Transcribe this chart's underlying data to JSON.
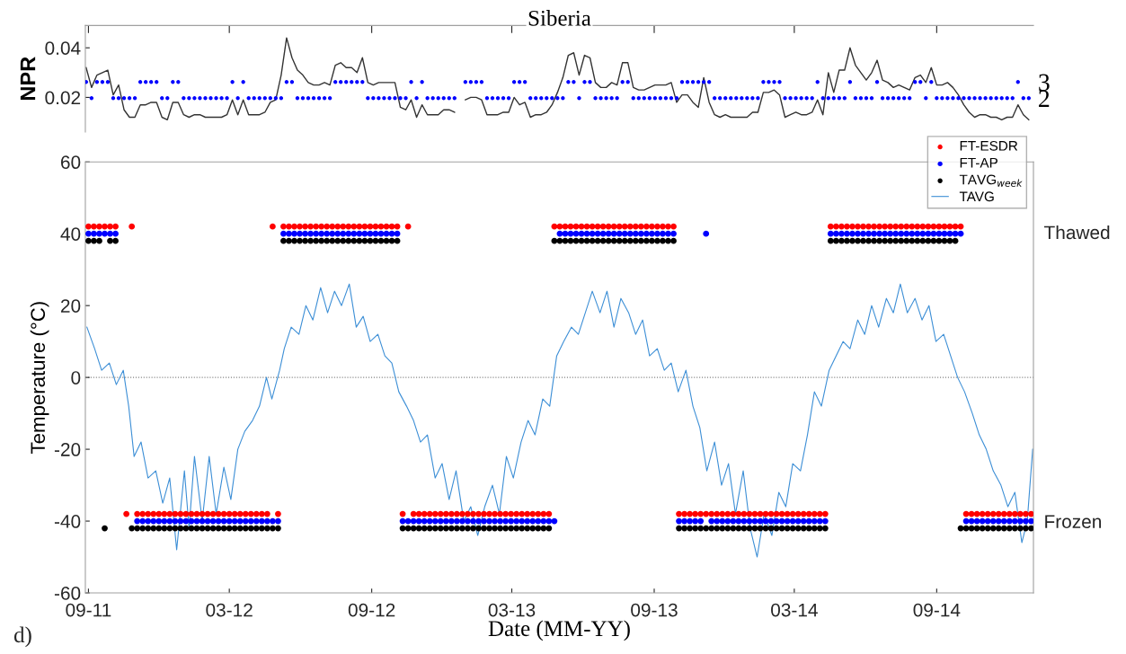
{
  "chart_data": [
    {
      "type": "line",
      "title": "Siberia",
      "ylabel": "NPR",
      "x": [
        "2011-08-29",
        "2011-09-05",
        "2011-09-12",
        "2011-09-19",
        "2011-09-26",
        "2011-10-03",
        "2011-10-10",
        "2011-10-17",
        "2011-10-24",
        "2011-10-31",
        "2011-11-07",
        "2011-11-14",
        "2011-11-21",
        "2011-11-28",
        "2011-12-05",
        "2011-12-12",
        "2011-12-19",
        "2011-12-26",
        "2012-01-02",
        "2012-01-09",
        "2012-01-16",
        "2012-01-23",
        "2012-01-30",
        "2012-02-06",
        "2012-02-13",
        "2012-02-20",
        "2012-02-27",
        "2012-03-05",
        "2012-03-12",
        "2012-03-19",
        "2012-03-26",
        "2012-04-02",
        "2012-04-09",
        "2012-04-16",
        "2012-04-23",
        "2012-04-30",
        "2012-05-07",
        "2012-05-14",
        "2012-05-21",
        "2012-05-28",
        "2012-06-04",
        "2012-06-11",
        "2012-06-18",
        "2012-06-25",
        "2012-07-02",
        "2012-07-09",
        "2012-07-16",
        "2012-07-23",
        "2012-07-30",
        "2012-08-06",
        "2012-08-13",
        "2012-08-20",
        "2012-08-27",
        "2012-09-03",
        "2012-09-10",
        "2012-09-17",
        "2012-09-24",
        "2012-10-01",
        "2012-10-08",
        "2012-10-15",
        "2012-10-22",
        "2012-10-29",
        "2012-11-05",
        "2012-11-12",
        "2012-11-19",
        "2012-11-26",
        "2012-12-03",
        "2012-12-10",
        "2012-12-17",
        "2012-12-24",
        "2012-12-31",
        "2013-01-07",
        "2013-01-14",
        "2013-01-21",
        "2013-01-28",
        "2013-02-04",
        "2013-02-11",
        "2013-02-18",
        "2013-02-25",
        "2013-03-04",
        "2013-03-11",
        "2013-03-18",
        "2013-03-25",
        "2013-04-01",
        "2013-04-08",
        "2013-04-15",
        "2013-04-22",
        "2013-04-29",
        "2013-05-06",
        "2013-05-13",
        "2013-05-20",
        "2013-05-27",
        "2013-06-03",
        "2013-06-10",
        "2013-06-17",
        "2013-06-24",
        "2013-07-01",
        "2013-07-08",
        "2013-07-15",
        "2013-07-22",
        "2013-07-29",
        "2013-08-05",
        "2013-08-12",
        "2013-08-19",
        "2013-08-26",
        "2013-09-02",
        "2013-09-09",
        "2013-09-16",
        "2013-09-23",
        "2013-09-30",
        "2013-10-07",
        "2013-10-14",
        "2013-10-21",
        "2013-10-28",
        "2013-11-04",
        "2013-11-11",
        "2013-11-18",
        "2013-11-25",
        "2013-12-02",
        "2013-12-09",
        "2013-12-16",
        "2013-12-23",
        "2013-12-30",
        "2014-01-06",
        "2014-01-13",
        "2014-01-20",
        "2014-01-27",
        "2014-02-03",
        "2014-02-10",
        "2014-02-17",
        "2014-02-24",
        "2014-03-03",
        "2014-03-10",
        "2014-03-17",
        "2014-03-24",
        "2014-03-31",
        "2014-04-07",
        "2014-04-14",
        "2014-04-21",
        "2014-04-28",
        "2014-05-05",
        "2014-05-12",
        "2014-05-19",
        "2014-05-26",
        "2014-06-02",
        "2014-06-09",
        "2014-06-16",
        "2014-06-23",
        "2014-06-30",
        "2014-07-07",
        "2014-07-14",
        "2014-07-21",
        "2014-07-28",
        "2014-08-04",
        "2014-08-11",
        "2014-08-18",
        "2014-08-25",
        "2014-09-01",
        "2014-09-08",
        "2014-09-15",
        "2014-09-22",
        "2014-09-29",
        "2014-10-06",
        "2014-10-13",
        "2014-10-20",
        "2014-10-27",
        "2014-11-03",
        "2014-11-10",
        "2014-11-17",
        "2014-11-24",
        "2014-12-01",
        "2014-12-08",
        "2014-12-15",
        "2014-12-22",
        "2014-12-29"
      ],
      "xlim": [
        "2011-08-28",
        "2015-01-04"
      ],
      "xticks": [
        {
          "value": "2011-09-01",
          "label": null
        },
        {
          "value": "2012-03-01",
          "label": null
        },
        {
          "value": "2012-09-01",
          "label": null
        },
        {
          "value": "2013-03-01",
          "label": null
        },
        {
          "value": "2013-09-01",
          "label": null
        },
        {
          "value": "2014-03-01",
          "label": null
        },
        {
          "value": "2014-09-01",
          "label": null
        }
      ],
      "ylim": [
        0.006,
        0.049
      ],
      "yticks": [
        0.02,
        0.04
      ],
      "y2lim": [
        -0.1,
        6.5
      ],
      "y2ticks": [
        2,
        3
      ],
      "tick_labels": "y",
      "series": [
        {
          "color": "#333333",
          "values": [
            0.032,
            0.024,
            0.029,
            0.03,
            0.031,
            0.021,
            0.025,
            0.015,
            0.012,
            0.012,
            0.017,
            0.017,
            0.018,
            0.018,
            0.012,
            0.011,
            0.018,
            0.018,
            0.013,
            0.012,
            0.013,
            0.013,
            0.012,
            0.012,
            0.012,
            0.012,
            0.013,
            0.019,
            0.013,
            0.019,
            0.013,
            0.013,
            0.013,
            0.014,
            0.018,
            0.019,
            0.029,
            0.044,
            0.036,
            0.031,
            0.029,
            0.026,
            0.025,
            0.025,
            0.026,
            0.025,
            0.033,
            0.034,
            0.032,
            0.032,
            0.03,
            0.036,
            0.026,
            0.025,
            0.026,
            0.026,
            0.026,
            0.026,
            0.016,
            0.015,
            0.019,
            0.012,
            0.017,
            0.013,
            0.013,
            0.013,
            0.015,
            0.015,
            0.014,
            null,
            0.019,
            0.02,
            0.02,
            0.019,
            0.013,
            0.013,
            0.013,
            0.014,
            0.014,
            0.02,
            0.017,
            0.018,
            0.012,
            0.013,
            0.013,
            0.014,
            0.017,
            0.022,
            0.028,
            0.037,
            0.038,
            0.029,
            0.037,
            0.036,
            0.026,
            0.024,
            0.024,
            0.026,
            0.025,
            0.034,
            0.034,
            0.024,
            0.023,
            0.023,
            0.024,
            0.025,
            0.025,
            0.025,
            0.026,
            0.018,
            0.021,
            0.021,
            0.018,
            0.016,
            0.028,
            0.018,
            0.013,
            0.012,
            0.013,
            0.012,
            0.012,
            0.012,
            0.012,
            0.014,
            0.014,
            0.022,
            0.022,
            0.023,
            0.021,
            0.012,
            0.013,
            0.014,
            0.013,
            0.013,
            0.014,
            0.019,
            0.013,
            0.03,
            0.022,
            0.031,
            0.031,
            0.04,
            0.033,
            0.03,
            0.027,
            0.03,
            0.035,
            0.027,
            0.026,
            0.024,
            0.025,
            0.024,
            0.023,
            0.028,
            0.029,
            0.026,
            0.032,
            0.025,
            0.025,
            0.026,
            0.024,
            0.021,
            0.017,
            0.014,
            0.012,
            0.013,
            0.013,
            0.012,
            0.012,
            0.011,
            0.012,
            0.012,
            0.017,
            0.013,
            0.011
          ]
        },
        {
          "type": "scatter",
          "axis": "y2",
          "marker": "circle",
          "color": "#0000ff",
          "values": [
            3,
            2,
            3,
            3,
            3,
            2,
            2,
            2,
            2,
            2,
            3,
            3,
            3,
            3,
            2,
            2,
            3,
            3,
            2,
            2,
            2,
            2,
            2,
            2,
            2,
            2,
            2,
            3,
            2,
            3,
            2,
            2,
            2,
            2,
            2,
            2,
            2,
            3,
            3,
            2,
            2,
            2,
            2,
            2,
            2,
            2,
            3,
            3,
            3,
            3,
            3,
            3,
            2,
            2,
            2,
            2,
            2,
            2,
            2,
            2,
            3,
            2,
            3,
            2,
            2,
            2,
            2,
            2,
            2,
            null,
            3,
            3,
            3,
            3,
            2,
            2,
            2,
            2,
            2,
            3,
            3,
            3,
            2,
            2,
            2,
            2,
            2,
            2,
            2,
            3,
            3,
            2,
            3,
            3,
            2,
            2,
            2,
            2,
            2,
            3,
            3,
            2,
            2,
            2,
            2,
            2,
            2,
            2,
            2,
            2,
            3,
            3,
            3,
            3,
            3,
            3,
            2,
            2,
            2,
            2,
            2,
            2,
            2,
            2,
            2,
            3,
            3,
            3,
            3,
            2,
            2,
            2,
            2,
            2,
            2,
            3,
            2,
            2,
            2,
            2,
            2,
            3,
            2,
            2,
            2,
            2,
            3,
            2,
            2,
            2,
            2,
            2,
            2,
            3,
            3,
            2,
            3,
            2,
            2,
            2,
            2,
            2,
            2,
            2,
            2,
            2,
            2,
            2,
            2,
            2,
            2,
            2,
            3,
            2,
            2
          ]
        }
      ]
    },
    {
      "type": "scatter",
      "xlabel": "Date (MM-YY)",
      "ylabel": "Temperature (°C)",
      "x": [
        "2011-09-01",
        "2011-09-08",
        "2011-09-15",
        "2011-09-22",
        "2011-09-29",
        "2011-10-06",
        "2011-10-13",
        "2011-10-20",
        "2011-10-27",
        "2011-11-03",
        "2011-11-10",
        "2011-11-17",
        "2011-11-24",
        "2011-12-01",
        "2011-12-08",
        "2011-12-15",
        "2011-12-22",
        "2011-12-29",
        "2012-01-05",
        "2012-01-12",
        "2012-01-19",
        "2012-01-26",
        "2012-02-02",
        "2012-02-09",
        "2012-02-16",
        "2012-02-23",
        "2012-03-01",
        "2012-03-08",
        "2012-03-15",
        "2012-03-22",
        "2012-03-29",
        "2012-04-05",
        "2012-04-12",
        "2012-04-19",
        "2012-04-26",
        "2012-05-03",
        "2012-05-10",
        "2012-05-17",
        "2012-05-24",
        "2012-05-31",
        "2012-06-07",
        "2012-06-14",
        "2012-06-21",
        "2012-06-28",
        "2012-07-05",
        "2012-07-12",
        "2012-07-19",
        "2012-07-26",
        "2012-08-02",
        "2012-08-09",
        "2012-08-16",
        "2012-08-23",
        "2012-08-30",
        "2012-09-06",
        "2012-09-13",
        "2012-09-20",
        "2012-09-27",
        "2012-10-04",
        "2012-10-11",
        "2012-10-18",
        "2012-10-25",
        "2012-11-01",
        "2012-11-08",
        "2012-11-15",
        "2012-11-22",
        "2012-11-29",
        "2012-12-06",
        "2012-12-13",
        "2012-12-20",
        "2012-12-27",
        "2013-01-03",
        "2013-01-10",
        "2013-01-17",
        "2013-01-24",
        "2013-01-31",
        "2013-02-07",
        "2013-02-14",
        "2013-02-21",
        "2013-02-28",
        "2013-03-07",
        "2013-03-14",
        "2013-03-21",
        "2013-03-28",
        "2013-04-04",
        "2013-04-11",
        "2013-04-18",
        "2013-04-25",
        "2013-05-02",
        "2013-05-09",
        "2013-05-16",
        "2013-05-23",
        "2013-05-30",
        "2013-06-06",
        "2013-06-13",
        "2013-06-20",
        "2013-06-27",
        "2013-07-04",
        "2013-07-11",
        "2013-07-18",
        "2013-07-25",
        "2013-08-01",
        "2013-08-08",
        "2013-08-15",
        "2013-08-22",
        "2013-08-29",
        "2013-09-05",
        "2013-09-12",
        "2013-09-19",
        "2013-09-26",
        "2013-10-03",
        "2013-10-10",
        "2013-10-17",
        "2013-10-24",
        "2013-10-31",
        "2013-11-07",
        "2013-11-14",
        "2013-11-21",
        "2013-11-28",
        "2013-12-05",
        "2013-12-12",
        "2013-12-19",
        "2013-12-26",
        "2014-01-02",
        "2014-01-09",
        "2014-01-16",
        "2014-01-23",
        "2014-01-30",
        "2014-02-06",
        "2014-02-13",
        "2014-02-20",
        "2014-02-27",
        "2014-03-06",
        "2014-03-13",
        "2014-03-20",
        "2014-03-27",
        "2014-04-03",
        "2014-04-10",
        "2014-04-17",
        "2014-04-24",
        "2014-05-01",
        "2014-05-08",
        "2014-05-15",
        "2014-05-22",
        "2014-05-29",
        "2014-06-05",
        "2014-06-12",
        "2014-06-19",
        "2014-06-26",
        "2014-07-03",
        "2014-07-10",
        "2014-07-17",
        "2014-07-24",
        "2014-07-31",
        "2014-08-07",
        "2014-08-14",
        "2014-08-21",
        "2014-08-28",
        "2014-09-04",
        "2014-09-11",
        "2014-09-18",
        "2014-09-25",
        "2014-10-02",
        "2014-10-09",
        "2014-10-16",
        "2014-10-23",
        "2014-10-30",
        "2014-11-06",
        "2014-11-13",
        "2014-11-20",
        "2014-11-27",
        "2014-12-04",
        "2014-12-11",
        "2014-12-18",
        "2014-12-25",
        "2015-01-01"
      ],
      "xlim": [
        "2011-08-28",
        "2015-01-04"
      ],
      "xticks": [
        {
          "value": "2011-09-01",
          "label": "09-11"
        },
        {
          "value": "2012-03-01",
          "label": "03-12"
        },
        {
          "value": "2012-09-01",
          "label": "09-12"
        },
        {
          "value": "2013-03-01",
          "label": "03-13"
        },
        {
          "value": "2013-09-01",
          "label": "09-13"
        },
        {
          "value": "2014-03-01",
          "label": "03-14"
        },
        {
          "value": "2014-09-01",
          "label": "09-14"
        }
      ],
      "ylim": [
        -60,
        60
      ],
      "yticks": [
        -60,
        -40,
        -20,
        0,
        20,
        40,
        60
      ],
      "ref_lines": [
        {
          "axis": "y",
          "value": 0,
          "color": "#808080",
          "line_style": "dotted"
        }
      ],
      "legend": "top right",
      "annotations": [
        "Thawed",
        "Frozen",
        "d)"
      ],
      "series": [
        {
          "name": "FT-ESDR",
          "marker": "circle",
          "color": "#ff0000",
          "values": [
            42,
            42,
            42,
            42,
            42,
            42,
            null,
            -38,
            42,
            -38,
            -38,
            -38,
            -38,
            -38,
            -38,
            -38,
            -38,
            -38,
            -38,
            -38,
            -38,
            -38,
            -38,
            -38,
            -38,
            -38,
            -38,
            -38,
            -38,
            -38,
            -38,
            -38,
            -38,
            -38,
            42,
            -38,
            42,
            42,
            42,
            42,
            42,
            42,
            42,
            42,
            42,
            42,
            42,
            42,
            42,
            42,
            42,
            42,
            42,
            42,
            42,
            42,
            42,
            42,
            -38,
            42,
            -38,
            -38,
            -38,
            -38,
            -38,
            -38,
            -38,
            -38,
            -38,
            -38,
            -38,
            -38,
            -38,
            -38,
            -38,
            -38,
            -38,
            -38,
            -38,
            -38,
            -38,
            -38,
            -38,
            -38,
            -38,
            -38,
            42,
            42,
            42,
            42,
            42,
            42,
            42,
            42,
            42,
            42,
            42,
            42,
            42,
            42,
            42,
            42,
            42,
            42,
            42,
            42,
            42,
            42,
            42,
            -38,
            -38,
            -38,
            -38,
            -38,
            -38,
            -38,
            -38,
            -38,
            -38,
            -38,
            -38,
            -38,
            -38,
            -38,
            -38,
            -38,
            -38,
            -38,
            -38,
            -38,
            -38,
            -38,
            -38,
            -38,
            -38,
            -38,
            -38,
            42,
            42,
            42,
            42,
            42,
            42,
            42,
            42,
            42,
            42,
            42,
            42,
            42,
            42,
            42,
            42,
            42,
            42,
            42,
            42,
            42,
            42,
            42,
            42,
            42,
            -38,
            -38,
            -38,
            -38,
            -38,
            -38,
            -38,
            -38,
            -38,
            -38,
            -38,
            -38,
            -38
          ]
        },
        {
          "name": "FT-AP",
          "marker": "circle",
          "color": "#0000ff",
          "values": [
            40,
            40,
            40,
            40,
            40,
            40,
            null,
            null,
            null,
            -40,
            -40,
            -40,
            -40,
            -40,
            -40,
            -40,
            -40,
            -40,
            -40,
            -40,
            -40,
            -40,
            -40,
            -40,
            -40,
            -40,
            -40,
            -40,
            -40,
            -40,
            -40,
            -40,
            -40,
            -40,
            -40,
            -40,
            40,
            40,
            40,
            40,
            40,
            40,
            40,
            40,
            40,
            40,
            40,
            40,
            40,
            40,
            40,
            40,
            40,
            40,
            40,
            40,
            40,
            40,
            -40,
            -40,
            -40,
            -40,
            -40,
            -40,
            -40,
            -40,
            -40,
            -40,
            -40,
            -40,
            -40,
            -40,
            -40,
            -40,
            -40,
            -40,
            -40,
            -40,
            -40,
            -40,
            -40,
            -40,
            -40,
            -40,
            -40,
            -40,
            -40,
            40,
            40,
            40,
            40,
            40,
            40,
            40,
            40,
            40,
            40,
            40,
            40,
            40,
            40,
            40,
            40,
            40,
            40,
            40,
            40,
            40,
            40,
            -40,
            -40,
            -40,
            -40,
            -40,
            40,
            -40,
            -40,
            -40,
            -40,
            -40,
            -40,
            -40,
            -40,
            -40,
            -40,
            -40,
            -40,
            -40,
            -40,
            -40,
            -40,
            -40,
            -40,
            -40,
            -40,
            -40,
            -40,
            40,
            40,
            40,
            40,
            40,
            40,
            40,
            40,
            40,
            40,
            40,
            40,
            40,
            40,
            40,
            40,
            40,
            40,
            40,
            40,
            40,
            40,
            40,
            40,
            40,
            -40,
            -40,
            -40,
            -40,
            -40,
            -40,
            -40,
            -40,
            -40,
            -40,
            -40,
            -40,
            -40
          ]
        },
        {
          "name": "TAVG$_{week}$",
          "marker": "circle",
          "color": "#000000",
          "values": [
            38,
            38,
            38,
            -42,
            38,
            38,
            null,
            null,
            -42,
            -42,
            -42,
            -42,
            -42,
            -42,
            -42,
            -42,
            -42,
            -42,
            -42,
            -42,
            -42,
            -42,
            -42,
            -42,
            -42,
            -42,
            -42,
            -42,
            -42,
            -42,
            -42,
            -42,
            -42,
            -42,
            -42,
            -42,
            38,
            38,
            38,
            38,
            38,
            38,
            38,
            38,
            38,
            38,
            38,
            38,
            38,
            38,
            38,
            38,
            38,
            38,
            38,
            38,
            38,
            38,
            -42,
            -42,
            -42,
            -42,
            -42,
            -42,
            -42,
            -42,
            -42,
            -42,
            -42,
            -42,
            -42,
            -42,
            -42,
            -42,
            -42,
            -42,
            -42,
            -42,
            -42,
            -42,
            -42,
            -42,
            -42,
            -42,
            -42,
            -42,
            38,
            38,
            38,
            38,
            38,
            38,
            38,
            38,
            38,
            38,
            38,
            38,
            38,
            38,
            38,
            38,
            38,
            38,
            38,
            38,
            38,
            38,
            38,
            -42,
            -42,
            -42,
            -42,
            -42,
            -42,
            -42,
            -42,
            -42,
            -42,
            -42,
            -42,
            -42,
            -42,
            -42,
            -42,
            -42,
            -42,
            -42,
            -42,
            -42,
            -42,
            -42,
            -42,
            -42,
            -42,
            -42,
            -42,
            38,
            38,
            38,
            38,
            38,
            38,
            38,
            38,
            38,
            38,
            38,
            38,
            38,
            38,
            38,
            38,
            38,
            38,
            38,
            38,
            38,
            38,
            38,
            38,
            -42,
            -42,
            -42,
            -42,
            -42,
            -42,
            -42,
            -42,
            -42,
            -42,
            -42,
            -42,
            -42,
            -42
          ]
        },
        {
          "type": "line",
          "name": "TAVG",
          "color": "#3d8fd6",
          "x": [
            "2011-08-30",
            "2011-09-09",
            "2011-09-18",
            "2011-09-28",
            "2011-10-07",
            "2011-10-16",
            "2011-10-23",
            "2011-10-30",
            "2011-11-08",
            "2011-11-17",
            "2011-11-27",
            "2011-12-06",
            "2011-12-15",
            "2011-12-24",
            "2012-01-03",
            "2012-01-09",
            "2012-01-16",
            "2012-01-26",
            "2012-02-04",
            "2012-02-13",
            "2012-02-23",
            "2012-03-03",
            "2012-03-12",
            "2012-03-21",
            "2012-03-31",
            "2012-04-09",
            "2012-04-18",
            "2012-04-25",
            "2012-05-05",
            "2012-05-11",
            "2012-05-20",
            "2012-05-30",
            "2012-06-08",
            "2012-06-17",
            "2012-06-27",
            "2012-07-06",
            "2012-07-15",
            "2012-07-24",
            "2012-08-03",
            "2012-08-12",
            "2012-08-21",
            "2012-08-30",
            "2012-09-09",
            "2012-09-18",
            "2012-09-27",
            "2012-10-06",
            "2012-10-16",
            "2012-10-25",
            "2012-11-03",
            "2012-11-12",
            "2012-11-22",
            "2012-12-01",
            "2012-12-10",
            "2012-12-19",
            "2012-12-29",
            "2013-01-07",
            "2013-01-16",
            "2013-01-25",
            "2013-02-04",
            "2013-02-13",
            "2013-02-22",
            "2013-03-03",
            "2013-03-13",
            "2013-03-22",
            "2013-03-31",
            "2013-04-10",
            "2013-04-19",
            "2013-04-28",
            "2013-05-07",
            "2013-05-17",
            "2013-05-26",
            "2013-06-04",
            "2013-06-13",
            "2013-06-23",
            "2013-07-02",
            "2013-07-11",
            "2013-07-20",
            "2013-07-30",
            "2013-08-08",
            "2013-08-17",
            "2013-08-26",
            "2013-09-05",
            "2013-09-14",
            "2013-09-23",
            "2013-10-02",
            "2013-10-12",
            "2013-10-21",
            "2013-10-30",
            "2013-11-08",
            "2013-11-18",
            "2013-11-27",
            "2013-12-06",
            "2013-12-15",
            "2013-12-25",
            "2014-01-03",
            "2014-01-12",
            "2014-01-21",
            "2014-01-31",
            "2014-02-09",
            "2014-02-18",
            "2014-02-27",
            "2014-03-09",
            "2014-03-18",
            "2014-03-27",
            "2014-04-05",
            "2014-04-15",
            "2014-04-24",
            "2014-05-03",
            "2014-05-12",
            "2014-05-22",
            "2014-05-31",
            "2014-06-09",
            "2014-06-18",
            "2014-06-28",
            "2014-07-07",
            "2014-07-16",
            "2014-07-25",
            "2014-08-04",
            "2014-08-13",
            "2014-08-22",
            "2014-08-31",
            "2014-09-10",
            "2014-09-19",
            "2014-09-28",
            "2014-10-07",
            "2014-10-17",
            "2014-10-26",
            "2014-11-04",
            "2014-11-13",
            "2014-11-23",
            "2014-12-02",
            "2014-12-11",
            "2014-12-20",
            "2014-12-27",
            "2015-01-03"
          ],
          "values": [
            14,
            8,
            2,
            4,
            -2,
            2,
            -8,
            -22,
            -18,
            -28,
            -26,
            -35,
            -28,
            -48,
            -26,
            -42,
            -22,
            -40,
            -22,
            -38,
            -25,
            -34,
            -20,
            -15,
            -12,
            -8,
            0,
            -6,
            2,
            8,
            14,
            12,
            20,
            16,
            25,
            18,
            24,
            20,
            26,
            14,
            17,
            10,
            12,
            6,
            4,
            -4,
            -8,
            -12,
            -18,
            -16,
            -28,
            -24,
            -34,
            -26,
            -40,
            -36,
            -44,
            -36,
            -30,
            -38,
            -22,
            -28,
            -18,
            -12,
            -16,
            -6,
            -8,
            6,
            10,
            14,
            12,
            18,
            24,
            18,
            24,
            14,
            22,
            18,
            12,
            16,
            6,
            8,
            2,
            4,
            -4,
            2,
            -8,
            -14,
            -26,
            -18,
            -30,
            -24,
            -38,
            -26,
            -42,
            -50,
            -38,
            -44,
            -32,
            -36,
            -24,
            -26,
            -16,
            -4,
            -8,
            2,
            6,
            10,
            8,
            16,
            12,
            20,
            14,
            22,
            18,
            26,
            18,
            22,
            16,
            20,
            10,
            12,
            6,
            0,
            -4,
            -10,
            -16,
            -20,
            -26,
            -30,
            -36,
            -32,
            -46,
            -40,
            -20
          ]
        }
      ]
    }
  ]
}
